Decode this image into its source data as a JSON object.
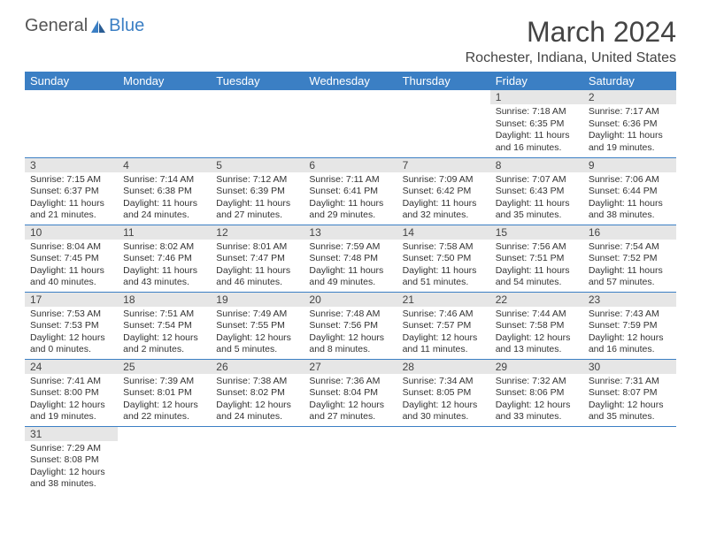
{
  "brand": {
    "general": "General",
    "blue": "Blue"
  },
  "title": "March 2024",
  "location": "Rochester, Indiana, United States",
  "colors": {
    "header_bg": "#3b7fc4",
    "header_fg": "#ffffff",
    "daynum_bg": "#e6e6e6",
    "row_border": "#3b7fc4",
    "page_bg": "#ffffff",
    "text": "#333333"
  },
  "layout": {
    "cols": 7
  },
  "dayHeaders": [
    "Sunday",
    "Monday",
    "Tuesday",
    "Wednesday",
    "Thursday",
    "Friday",
    "Saturday"
  ],
  "weeks": [
    [
      null,
      null,
      null,
      null,
      null,
      {
        "n": "1",
        "sunrise": "Sunrise: 7:18 AM",
        "sunset": "Sunset: 6:35 PM",
        "daylight": "Daylight: 11 hours and 16 minutes."
      },
      {
        "n": "2",
        "sunrise": "Sunrise: 7:17 AM",
        "sunset": "Sunset: 6:36 PM",
        "daylight": "Daylight: 11 hours and 19 minutes."
      }
    ],
    [
      {
        "n": "3",
        "sunrise": "Sunrise: 7:15 AM",
        "sunset": "Sunset: 6:37 PM",
        "daylight": "Daylight: 11 hours and 21 minutes."
      },
      {
        "n": "4",
        "sunrise": "Sunrise: 7:14 AM",
        "sunset": "Sunset: 6:38 PM",
        "daylight": "Daylight: 11 hours and 24 minutes."
      },
      {
        "n": "5",
        "sunrise": "Sunrise: 7:12 AM",
        "sunset": "Sunset: 6:39 PM",
        "daylight": "Daylight: 11 hours and 27 minutes."
      },
      {
        "n": "6",
        "sunrise": "Sunrise: 7:11 AM",
        "sunset": "Sunset: 6:41 PM",
        "daylight": "Daylight: 11 hours and 29 minutes."
      },
      {
        "n": "7",
        "sunrise": "Sunrise: 7:09 AM",
        "sunset": "Sunset: 6:42 PM",
        "daylight": "Daylight: 11 hours and 32 minutes."
      },
      {
        "n": "8",
        "sunrise": "Sunrise: 7:07 AM",
        "sunset": "Sunset: 6:43 PM",
        "daylight": "Daylight: 11 hours and 35 minutes."
      },
      {
        "n": "9",
        "sunrise": "Sunrise: 7:06 AM",
        "sunset": "Sunset: 6:44 PM",
        "daylight": "Daylight: 11 hours and 38 minutes."
      }
    ],
    [
      {
        "n": "10",
        "sunrise": "Sunrise: 8:04 AM",
        "sunset": "Sunset: 7:45 PM",
        "daylight": "Daylight: 11 hours and 40 minutes."
      },
      {
        "n": "11",
        "sunrise": "Sunrise: 8:02 AM",
        "sunset": "Sunset: 7:46 PM",
        "daylight": "Daylight: 11 hours and 43 minutes."
      },
      {
        "n": "12",
        "sunrise": "Sunrise: 8:01 AM",
        "sunset": "Sunset: 7:47 PM",
        "daylight": "Daylight: 11 hours and 46 minutes."
      },
      {
        "n": "13",
        "sunrise": "Sunrise: 7:59 AM",
        "sunset": "Sunset: 7:48 PM",
        "daylight": "Daylight: 11 hours and 49 minutes."
      },
      {
        "n": "14",
        "sunrise": "Sunrise: 7:58 AM",
        "sunset": "Sunset: 7:50 PM",
        "daylight": "Daylight: 11 hours and 51 minutes."
      },
      {
        "n": "15",
        "sunrise": "Sunrise: 7:56 AM",
        "sunset": "Sunset: 7:51 PM",
        "daylight": "Daylight: 11 hours and 54 minutes."
      },
      {
        "n": "16",
        "sunrise": "Sunrise: 7:54 AM",
        "sunset": "Sunset: 7:52 PM",
        "daylight": "Daylight: 11 hours and 57 minutes."
      }
    ],
    [
      {
        "n": "17",
        "sunrise": "Sunrise: 7:53 AM",
        "sunset": "Sunset: 7:53 PM",
        "daylight": "Daylight: 12 hours and 0 minutes."
      },
      {
        "n": "18",
        "sunrise": "Sunrise: 7:51 AM",
        "sunset": "Sunset: 7:54 PM",
        "daylight": "Daylight: 12 hours and 2 minutes."
      },
      {
        "n": "19",
        "sunrise": "Sunrise: 7:49 AM",
        "sunset": "Sunset: 7:55 PM",
        "daylight": "Daylight: 12 hours and 5 minutes."
      },
      {
        "n": "20",
        "sunrise": "Sunrise: 7:48 AM",
        "sunset": "Sunset: 7:56 PM",
        "daylight": "Daylight: 12 hours and 8 minutes."
      },
      {
        "n": "21",
        "sunrise": "Sunrise: 7:46 AM",
        "sunset": "Sunset: 7:57 PM",
        "daylight": "Daylight: 12 hours and 11 minutes."
      },
      {
        "n": "22",
        "sunrise": "Sunrise: 7:44 AM",
        "sunset": "Sunset: 7:58 PM",
        "daylight": "Daylight: 12 hours and 13 minutes."
      },
      {
        "n": "23",
        "sunrise": "Sunrise: 7:43 AM",
        "sunset": "Sunset: 7:59 PM",
        "daylight": "Daylight: 12 hours and 16 minutes."
      }
    ],
    [
      {
        "n": "24",
        "sunrise": "Sunrise: 7:41 AM",
        "sunset": "Sunset: 8:00 PM",
        "daylight": "Daylight: 12 hours and 19 minutes."
      },
      {
        "n": "25",
        "sunrise": "Sunrise: 7:39 AM",
        "sunset": "Sunset: 8:01 PM",
        "daylight": "Daylight: 12 hours and 22 minutes."
      },
      {
        "n": "26",
        "sunrise": "Sunrise: 7:38 AM",
        "sunset": "Sunset: 8:02 PM",
        "daylight": "Daylight: 12 hours and 24 minutes."
      },
      {
        "n": "27",
        "sunrise": "Sunrise: 7:36 AM",
        "sunset": "Sunset: 8:04 PM",
        "daylight": "Daylight: 12 hours and 27 minutes."
      },
      {
        "n": "28",
        "sunrise": "Sunrise: 7:34 AM",
        "sunset": "Sunset: 8:05 PM",
        "daylight": "Daylight: 12 hours and 30 minutes."
      },
      {
        "n": "29",
        "sunrise": "Sunrise: 7:32 AM",
        "sunset": "Sunset: 8:06 PM",
        "daylight": "Daylight: 12 hours and 33 minutes."
      },
      {
        "n": "30",
        "sunrise": "Sunrise: 7:31 AM",
        "sunset": "Sunset: 8:07 PM",
        "daylight": "Daylight: 12 hours and 35 minutes."
      }
    ],
    [
      {
        "n": "31",
        "sunrise": "Sunrise: 7:29 AM",
        "sunset": "Sunset: 8:08 PM",
        "daylight": "Daylight: 12 hours and 38 minutes."
      },
      null,
      null,
      null,
      null,
      null,
      null
    ]
  ]
}
